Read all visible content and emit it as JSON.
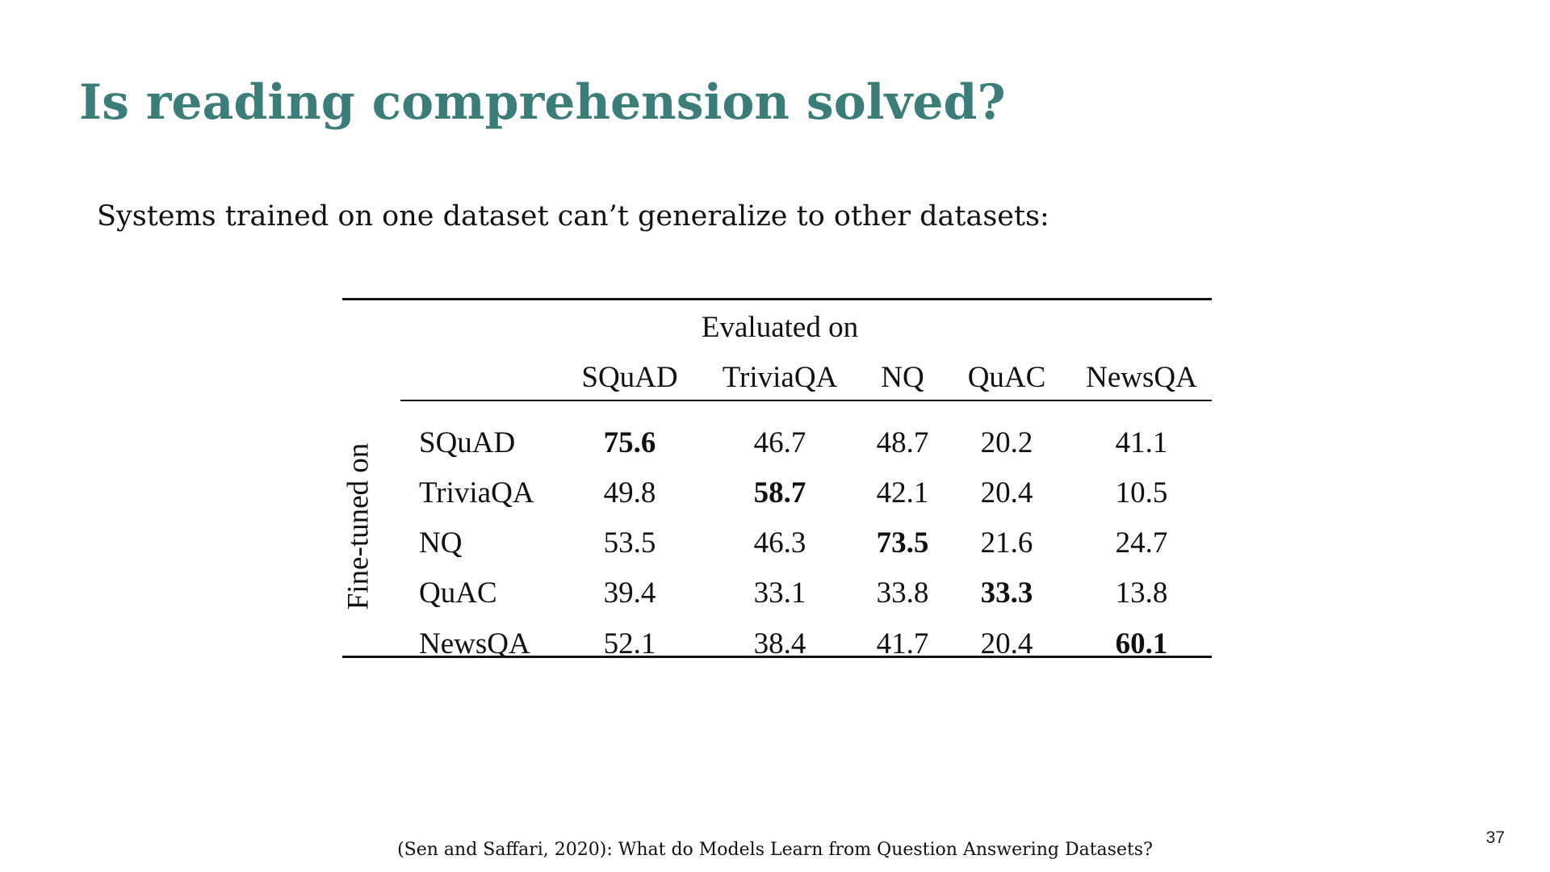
{
  "slide": {
    "title": "Is reading comprehension solved?",
    "subtitle": "Systems trained on one dataset can’t generalize to other datasets:",
    "citation": "(Sen and Saffari, 2020): What do Models Learn from Question Answering Datasets?",
    "page_number": "37",
    "title_color": "#3b7d78"
  },
  "table": {
    "column_group_label": "Evaluated on",
    "row_group_label": "Fine-tuned on",
    "columns": [
      "SQuAD",
      "TriviaQA",
      "NQ",
      "QuAC",
      "NewsQA"
    ],
    "rows": [
      {
        "label": "SQuAD",
        "values": [
          "75.6",
          "46.7",
          "48.7",
          "20.2",
          "41.1"
        ],
        "bold_index": 0
      },
      {
        "label": "TriviaQA",
        "values": [
          "49.8",
          "58.7",
          "42.1",
          "20.4",
          "10.5"
        ],
        "bold_index": 1
      },
      {
        "label": "NQ",
        "values": [
          "53.5",
          "46.3",
          "73.5",
          "21.6",
          "24.7"
        ],
        "bold_index": 2
      },
      {
        "label": "QuAC",
        "values": [
          "39.4",
          "33.1",
          "33.8",
          "33.3",
          "13.8"
        ],
        "bold_index": 3
      },
      {
        "label": "NewsQA",
        "values": [
          "52.1",
          "38.4",
          "41.7",
          "20.4",
          "60.1"
        ],
        "bold_index": 4
      }
    ]
  }
}
